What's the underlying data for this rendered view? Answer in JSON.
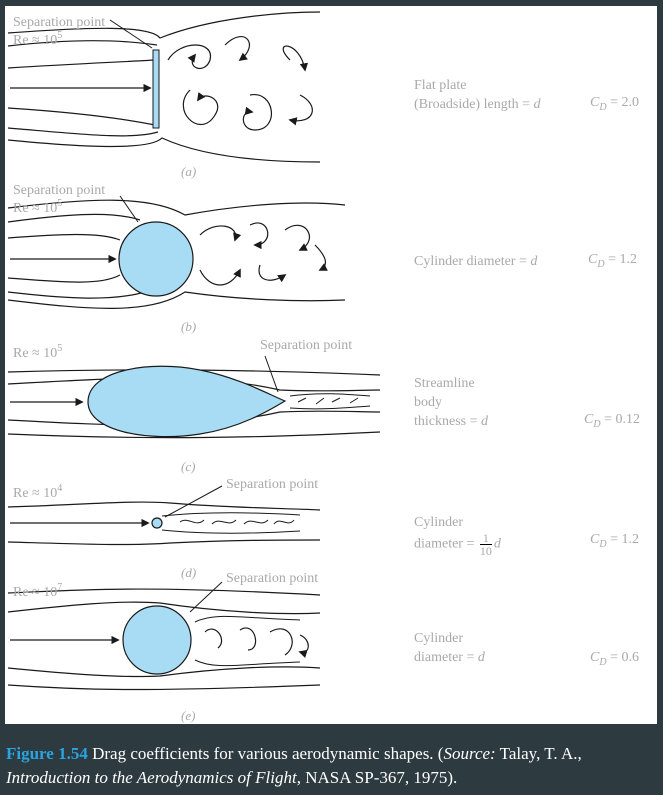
{
  "panels": [
    {
      "sub": "(a)",
      "re": "Re ≈ 10",
      "exp": "5",
      "sep": "Separation point",
      "desc1": "Flat plate",
      "desc2": "(Broadside) length = ",
      "var": "d",
      "cd": "= 2.0"
    },
    {
      "sub": "(b)",
      "re": "Re ≈ 10",
      "exp": "5",
      "sep": "Separation point",
      "desc1": "Cylinder diameter = ",
      "var": "d",
      "cd": "= 1.2"
    },
    {
      "sub": "(c)",
      "re": "Re ≈ 10",
      "exp": "5",
      "sep": "Separation point",
      "desc1": "Streamline",
      "desc2": "body",
      "desc3": "thickness = ",
      "var": "d",
      "cd": "= 0.12"
    },
    {
      "sub": "(d)",
      "re": "Re ≈ 10",
      "exp": "4",
      "sep": "Separation point",
      "desc1": "Cylinder",
      "desc2": "diameter = ",
      "frac_num": "1",
      "frac_den": "10",
      "var": "d",
      "cd": "= 1.2"
    },
    {
      "sub": "(e)",
      "re": "Re ≈ 10",
      "exp": "7",
      "sep": "Separation point",
      "desc1": "Cylinder",
      "desc2": "diameter = ",
      "var": "d",
      "cd": "= 0.6"
    }
  ],
  "cd_symbol": "C",
  "cd_sub": "D",
  "caption": {
    "number": "Figure 1.54",
    "text1": "Drag coefficients for various aerodynamic shapes. (",
    "source_label": "Source:",
    "text2": " Talay, T. A., ",
    "book": "Introduction to the Aerodynamics of Flight,",
    "text3": " NASA SP-367, 1975)."
  },
  "colors": {
    "body": "#a8dcf5",
    "stroke": "#1a1a1a",
    "label": "#a9a9a9",
    "accent": "#2aa4e0",
    "background": "#2d3a40"
  }
}
